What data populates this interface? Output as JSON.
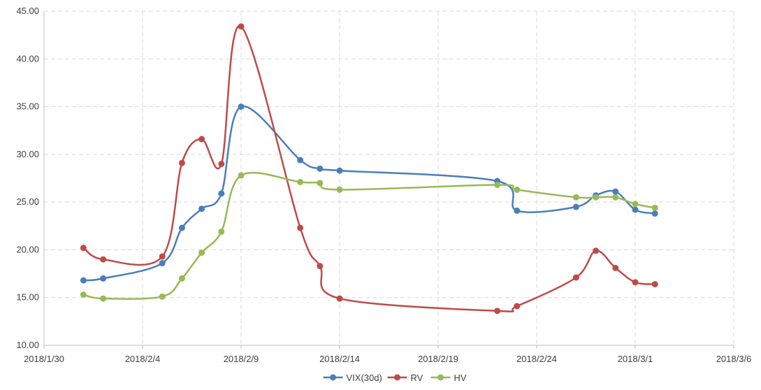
{
  "chart_data": {
    "type": "line",
    "title": "",
    "xlabel": "",
    "ylabel": "",
    "x_axis": {
      "min": "2018/1/30",
      "max": "2018/3/6",
      "tick_labels": [
        "2018/1/30",
        "2018/2/4",
        "2018/2/9",
        "2018/2/14",
        "2018/2/19",
        "2018/2/24",
        "2018/3/1",
        "2018/3/6"
      ]
    },
    "y_axis": {
      "min": 10,
      "max": 45,
      "tick_labels": [
        "10.00",
        "15.00",
        "20.00",
        "25.00",
        "30.00",
        "35.00",
        "40.00",
        "45.00"
      ]
    },
    "grid": true,
    "smooth": true,
    "legend_position": "bottom",
    "series": [
      {
        "name": "VIX(30d)",
        "color": "#4a7ebb",
        "points": [
          [
            "2018/2/1",
            16.8
          ],
          [
            "2018/2/2",
            17.0
          ],
          [
            "2018/2/5",
            18.6
          ],
          [
            "2018/2/6",
            22.3
          ],
          [
            "2018/2/7",
            24.3
          ],
          [
            "2018/2/8",
            25.9
          ],
          [
            "2018/2/9",
            35.0
          ],
          [
            "2018/2/12",
            29.4
          ],
          [
            "2018/2/13",
            28.5
          ],
          [
            "2018/2/14",
            28.3
          ],
          [
            "2018/2/22",
            27.2
          ],
          [
            "2018/2/23",
            24.1
          ],
          [
            "2018/2/26",
            24.5
          ],
          [
            "2018/2/27",
            25.7
          ],
          [
            "2018/2/28",
            26.1
          ],
          [
            "2018/3/1",
            24.2
          ],
          [
            "2018/3/2",
            23.8
          ]
        ]
      },
      {
        "name": "RV",
        "color": "#be4b48",
        "points": [
          [
            "2018/2/1",
            20.2
          ],
          [
            "2018/2/2",
            19.0
          ],
          [
            "2018/2/5",
            19.3
          ],
          [
            "2018/2/6",
            29.1
          ],
          [
            "2018/2/7",
            31.6
          ],
          [
            "2018/2/8",
            29.0
          ],
          [
            "2018/2/9",
            43.4
          ],
          [
            "2018/2/12",
            22.3
          ],
          [
            "2018/2/13",
            18.3
          ],
          [
            "2018/2/14",
            14.9
          ],
          [
            "2018/2/22",
            13.6
          ],
          [
            "2018/2/23",
            14.1
          ],
          [
            "2018/2/26",
            17.1
          ],
          [
            "2018/2/27",
            19.9
          ],
          [
            "2018/2/28",
            18.1
          ],
          [
            "2018/3/1",
            16.6
          ],
          [
            "2018/3/2",
            16.4
          ]
        ]
      },
      {
        "name": "HV",
        "color": "#98b954",
        "points": [
          [
            "2018/2/1",
            15.3
          ],
          [
            "2018/2/2",
            14.9
          ],
          [
            "2018/2/5",
            15.1
          ],
          [
            "2018/2/6",
            17.0
          ],
          [
            "2018/2/7",
            19.7
          ],
          [
            "2018/2/8",
            21.9
          ],
          [
            "2018/2/9",
            27.8
          ],
          [
            "2018/2/12",
            27.1
          ],
          [
            "2018/2/13",
            27.0
          ],
          [
            "2018/2/14",
            26.3
          ],
          [
            "2018/2/22",
            26.8
          ],
          [
            "2018/2/23",
            26.3
          ],
          [
            "2018/2/26",
            25.5
          ],
          [
            "2018/2/27",
            25.5
          ],
          [
            "2018/2/28",
            25.5
          ],
          [
            "2018/3/1",
            24.8
          ],
          [
            "2018/3/2",
            24.4
          ]
        ]
      }
    ]
  }
}
